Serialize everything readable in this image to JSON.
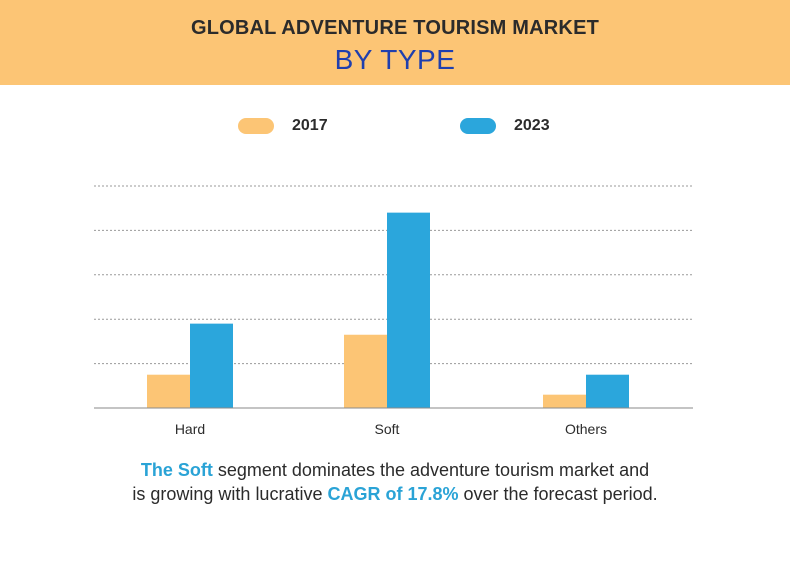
{
  "header": {
    "title_line1": "GLOBAL ADVENTURE TOURISM MARKET",
    "title_line2": "BY TYPE"
  },
  "colors": {
    "header_bg": "#fcc575",
    "series_2017": "#fcc575",
    "series_2023": "#2ba6dc",
    "highlight": "#2aa3d6",
    "title_blue": "#1f3fae"
  },
  "chart_data": {
    "type": "bar",
    "title": "",
    "xlabel": "",
    "ylabel": "",
    "categories": [
      "Hard",
      "Soft",
      "Others"
    ],
    "series": [
      {
        "name": "2017",
        "values": [
          0.75,
          1.65,
          0.3
        ]
      },
      {
        "name": "2023",
        "values": [
          1.9,
          4.4,
          0.75
        ]
      }
    ],
    "ylim": [
      0,
      5
    ],
    "grid": true,
    "y_tick_labels_shown": false,
    "legend_position": "top"
  },
  "footer": {
    "line1_highlight": "The Soft",
    "line1_rest": " segment dominates the adventure tourism market and",
    "line2_start": "is growing with lucrative ",
    "line2_highlight": "CAGR of 17.8%",
    "line2_end": " over the forecast period."
  }
}
